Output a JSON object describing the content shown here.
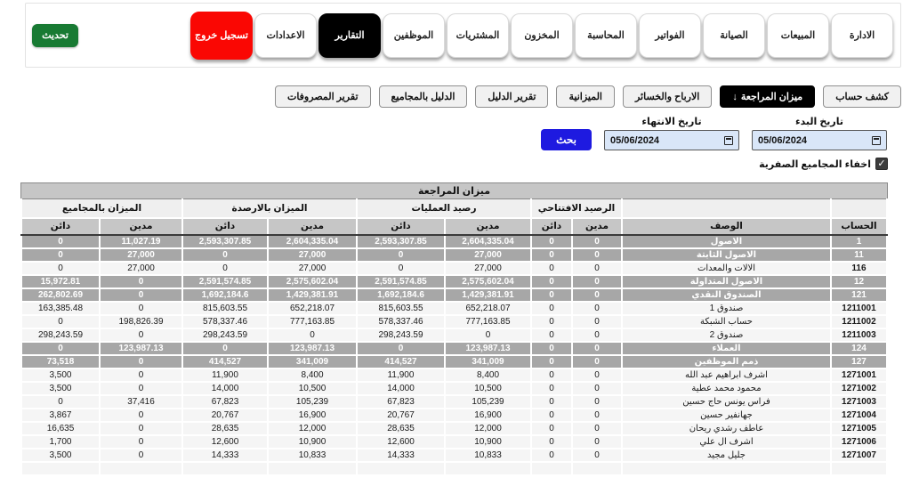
{
  "colors": {
    "refresh_green": "#187a33",
    "logout_red": "#fa0703",
    "search_blue": "#1e1ae0",
    "active_black": "#000000",
    "field_blue": "#d9e6f8",
    "group_row_gray": "#a7a7a7",
    "header_gray": "#c6c6c6"
  },
  "topnav": {
    "refresh_label": "تحديث",
    "buttons": [
      {
        "label": "الادارة",
        "style": "default"
      },
      {
        "label": "المبيعات",
        "style": "default"
      },
      {
        "label": "الصيانة",
        "style": "default"
      },
      {
        "label": "الفواتير",
        "style": "default"
      },
      {
        "label": "المحاسبة",
        "style": "default"
      },
      {
        "label": "المخزون",
        "style": "default"
      },
      {
        "label": "المشتريات",
        "style": "default"
      },
      {
        "label": "الموظفين",
        "style": "default"
      },
      {
        "label": "التقارير",
        "style": "active"
      },
      {
        "label": "الاعدادات",
        "style": "default"
      },
      {
        "label": "تسجيل خروج",
        "style": "logout"
      }
    ]
  },
  "report_tabs": [
    {
      "label": "كشف حساب",
      "active": false,
      "arrow": ""
    },
    {
      "label": "ميزان المراجعة",
      "active": true,
      "arrow": "↓"
    },
    {
      "label": "الارباح والخسائر",
      "active": false,
      "arrow": ""
    },
    {
      "label": "الميزانية",
      "active": false,
      "arrow": ""
    },
    {
      "label": "تقرير الدليل",
      "active": false,
      "arrow": ""
    },
    {
      "label": "الدليل بالمجاميع",
      "active": false,
      "arrow": ""
    },
    {
      "label": "تقرير المصروفات",
      "active": false,
      "arrow": ""
    }
  ],
  "filters": {
    "start_date_label": "تاريخ البدء",
    "start_date_value": "05/06/2024",
    "end_date_label": "تاريخ الانتهاء",
    "end_date_value": "05/06/2024",
    "search_label": "بحث",
    "hide_zero_label": "اخفاء المجاميع الصفرية",
    "hide_zero_checked": true,
    "checkmark": "✓"
  },
  "table": {
    "title": "ميزان المراجعة",
    "groups": {
      "opening": "الرصيد الافتتاحي",
      "operations": "رصيد العمليات",
      "balances": "الميزان بالارصدة",
      "totals": "الميزان بالمجاميع"
    },
    "columns": {
      "account": "الحساب",
      "description": "الوصف",
      "debit": "مدين",
      "credit": "دائن"
    },
    "rows": [
      {
        "account": "1",
        "name": "الاصول",
        "level": "group",
        "od": "0",
        "oc": "0",
        "pd": "2,604,335.04",
        "pc": "2,593,307.85",
        "bd": "2,604,335.04",
        "bc": "2,593,307.85",
        "td": "11,027.19",
        "tc": "0"
      },
      {
        "account": "11",
        "name": "الاصول الثابتة",
        "level": "group",
        "od": "0",
        "oc": "0",
        "pd": "27,000",
        "pc": "0",
        "bd": "27,000",
        "bc": "0",
        "td": "27,000",
        "tc": "0"
      },
      {
        "account": "116",
        "name": "الالات والمعدات",
        "level": "leaf",
        "od": "0",
        "oc": "0",
        "pd": "27,000",
        "pc": "0",
        "bd": "27,000",
        "bc": "0",
        "td": "27,000",
        "tc": "0"
      },
      {
        "account": "12",
        "name": "الاصول المتداولة",
        "level": "group",
        "od": "0",
        "oc": "0",
        "pd": "2,575,602.04",
        "pc": "2,591,574.85",
        "bd": "2,575,602.04",
        "bc": "2,591,574.85",
        "td": "0",
        "tc": "15,972.81"
      },
      {
        "account": "121",
        "name": "الصندوق النقدي",
        "level": "group",
        "od": "0",
        "oc": "0",
        "pd": "1,429,381.91",
        "pc": "1,692,184.6",
        "bd": "1,429,381.91",
        "bc": "1,692,184.6",
        "td": "0",
        "tc": "262,802.69"
      },
      {
        "account": "1211001",
        "name": "صندوق 1",
        "level": "leaf",
        "od": "0",
        "oc": "0",
        "pd": "652,218.07",
        "pc": "815,603.55",
        "bd": "652,218.07",
        "bc": "815,603.55",
        "td": "0",
        "tc": "163,385.48"
      },
      {
        "account": "1211002",
        "name": "حساب الشبكة",
        "level": "leaf",
        "od": "0",
        "oc": "0",
        "pd": "777,163.85",
        "pc": "578,337.46",
        "bd": "777,163.85",
        "bc": "578,337.46",
        "td": "198,826.39",
        "tc": "0"
      },
      {
        "account": "1211003",
        "name": "صندوق 2",
        "level": "leaf",
        "od": "0",
        "oc": "0",
        "pd": "0",
        "pc": "298,243.59",
        "bd": "0",
        "bc": "298,243.59",
        "td": "0",
        "tc": "298,243.59"
      },
      {
        "account": "124",
        "name": "العملاء",
        "level": "group",
        "od": "0",
        "oc": "0",
        "pd": "123,987.13",
        "pc": "0",
        "bd": "123,987.13",
        "bc": "0",
        "td": "123,987.13",
        "tc": "0"
      },
      {
        "account": "127",
        "name": "ذمم الموظفين",
        "level": "group",
        "od": "0",
        "oc": "0",
        "pd": "341,009",
        "pc": "414,527",
        "bd": "341,009",
        "bc": "414,527",
        "td": "0",
        "tc": "73,518"
      },
      {
        "account": "1271001",
        "name": "اشرف ابراهيم عبد الله",
        "level": "leaf",
        "od": "0",
        "oc": "0",
        "pd": "8,400",
        "pc": "11,900",
        "bd": "8,400",
        "bc": "11,900",
        "td": "0",
        "tc": "3,500"
      },
      {
        "account": "1271002",
        "name": "محمود محمد عطية",
        "level": "leaf",
        "od": "0",
        "oc": "0",
        "pd": "10,500",
        "pc": "14,000",
        "bd": "10,500",
        "bc": "14,000",
        "td": "0",
        "tc": "3,500"
      },
      {
        "account": "1271003",
        "name": "فراس يونس حاج حسين",
        "level": "leaf",
        "od": "0",
        "oc": "0",
        "pd": "105,239",
        "pc": "67,823",
        "bd": "105,239",
        "bc": "67,823",
        "td": "37,416",
        "tc": "0"
      },
      {
        "account": "1271004",
        "name": "جهانفير حسين",
        "level": "leaf",
        "od": "0",
        "oc": "0",
        "pd": "16,900",
        "pc": "20,767",
        "bd": "16,900",
        "bc": "20,767",
        "td": "0",
        "tc": "3,867"
      },
      {
        "account": "1271005",
        "name": "عاطف رشدي ريحان",
        "level": "leaf",
        "od": "0",
        "oc": "0",
        "pd": "12,000",
        "pc": "28,635",
        "bd": "12,000",
        "bc": "28,635",
        "td": "0",
        "tc": "16,635"
      },
      {
        "account": "1271006",
        "name": "اشرف ال علي",
        "level": "leaf",
        "od": "0",
        "oc": "0",
        "pd": "10,900",
        "pc": "12,600",
        "bd": "10,900",
        "bc": "12,600",
        "td": "0",
        "tc": "1,700"
      },
      {
        "account": "1271007",
        "name": "جليل مجيد",
        "level": "leaf",
        "od": "0",
        "oc": "0",
        "pd": "10,833",
        "pc": "14,333",
        "bd": "10,833",
        "bc": "14,333",
        "td": "0",
        "tc": "3,500"
      }
    ]
  }
}
